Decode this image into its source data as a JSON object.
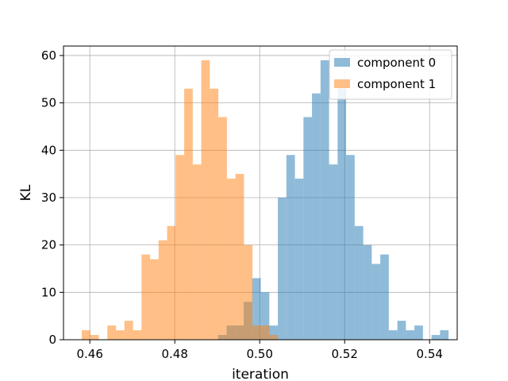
{
  "chart_data": {
    "type": "bar",
    "title": "",
    "xlabel": "iteration",
    "ylabel": "KL",
    "xlim": [
      0.4538,
      0.5465
    ],
    "ylim": [
      0,
      62
    ],
    "xticks": [
      0.46,
      0.48,
      0.5,
      0.52,
      0.54
    ],
    "xtick_labels": [
      "0.46",
      "0.48",
      "0.50",
      "0.52",
      "0.54"
    ],
    "yticks": [
      0,
      10,
      20,
      30,
      40,
      50,
      60
    ],
    "ytick_labels": [
      "0",
      "10",
      "20",
      "30",
      "40",
      "50",
      "60"
    ],
    "grid": true,
    "legend_position": "top-right",
    "series": [
      {
        "name": "component 0",
        "color": "#1f77b4",
        "alpha": 0.5,
        "bin_start": 0.4902,
        "bin_width": 0.00201,
        "counts": [
          1,
          3,
          3,
          8,
          13,
          10,
          3,
          30,
          39,
          34,
          47,
          52,
          59,
          37,
          53,
          39,
          24,
          20,
          16,
          18,
          2,
          4,
          2,
          3,
          0,
          1,
          2
        ]
      },
      {
        "name": "component 1",
        "color": "#ff7f0e",
        "alpha": 0.5,
        "bin_start": 0.4581,
        "bin_width": 0.00201,
        "counts": [
          2,
          1,
          0,
          3,
          2,
          4,
          2,
          18,
          17,
          21,
          24,
          39,
          53,
          37,
          59,
          53,
          47,
          34,
          35,
          20,
          3,
          3,
          1
        ]
      }
    ]
  }
}
